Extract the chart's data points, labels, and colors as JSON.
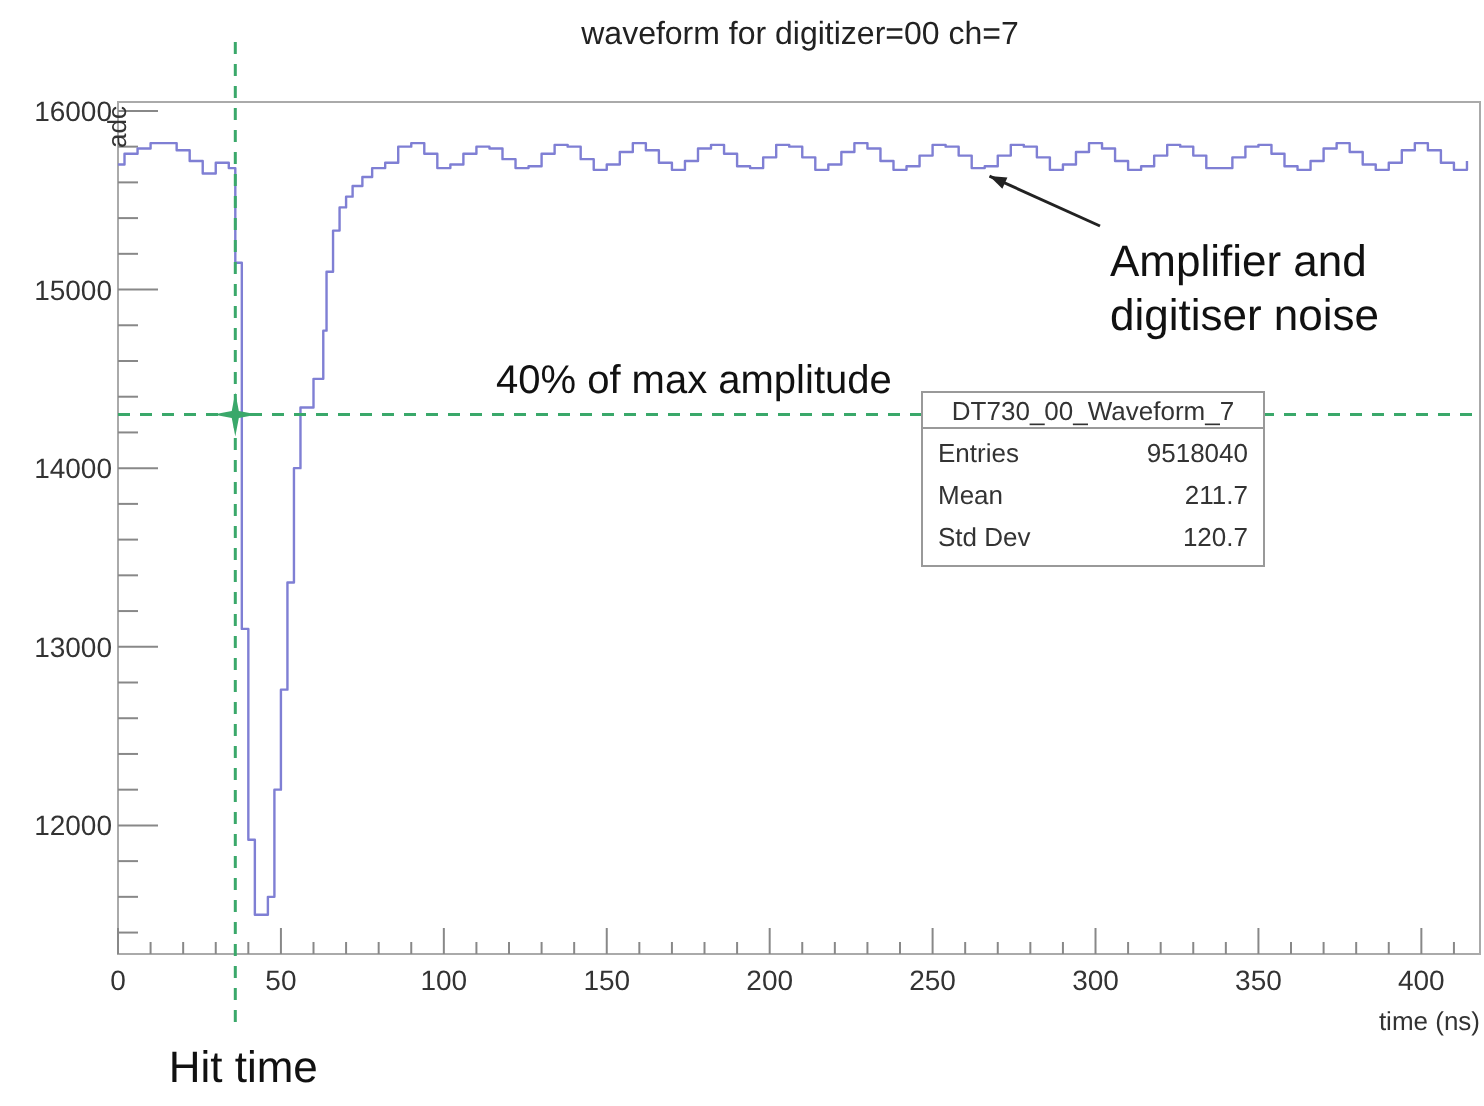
{
  "chart_data": {
    "type": "step",
    "title": "waveform for digitizer=00 ch=7",
    "xlabel": "time (ns)",
    "ylabel": "adc",
    "xlim": [
      0,
      418
    ],
    "ylim": [
      11280,
      16050
    ],
    "xticks": [
      0,
      {
        "value": 10,
        "label": null
      },
      {
        "value": 20,
        "label": null
      },
      {
        "value": 30,
        "label": null
      },
      {
        "value": 40,
        "label": null
      },
      50,
      {
        "value": 60,
        "label": null
      },
      {
        "value": 70,
        "label": null
      },
      {
        "value": 80,
        "label": null
      },
      {
        "value": 90,
        "label": null
      },
      100,
      {
        "value": 110,
        "label": null
      },
      {
        "value": 120,
        "label": null
      },
      {
        "value": 130,
        "label": null
      },
      {
        "value": 140,
        "label": null
      },
      150,
      {
        "value": 160,
        "label": null
      },
      {
        "value": 170,
        "label": null
      },
      {
        "value": 180,
        "label": null
      },
      {
        "value": 190,
        "label": null
      },
      200,
      {
        "value": 210,
        "label": null
      },
      {
        "value": 220,
        "label": null
      },
      {
        "value": 230,
        "label": null
      },
      {
        "value": 240,
        "label": null
      },
      250,
      {
        "value": 260,
        "label": null
      },
      {
        "value": 270,
        "label": null
      },
      {
        "value": 280,
        "label": null
      },
      {
        "value": 290,
        "label": null
      },
      300,
      {
        "value": 310,
        "label": null
      },
      {
        "value": 320,
        "label": null
      },
      {
        "value": 330,
        "label": null
      },
      {
        "value": 340,
        "label": null
      },
      350,
      {
        "value": 360,
        "label": null
      },
      {
        "value": 370,
        "label": null
      },
      {
        "value": 380,
        "label": null
      },
      {
        "value": 390,
        "label": null
      },
      400,
      {
        "value": 410,
        "label": null
      }
    ],
    "yticks": [
      {
        "value": 11400,
        "label": null
      },
      {
        "value": 11600,
        "label": null
      },
      {
        "value": 11800,
        "label": null
      },
      12000,
      {
        "value": 12200,
        "label": null
      },
      {
        "value": 12400,
        "label": null
      },
      {
        "value": 12600,
        "label": null
      },
      {
        "value": 12800,
        "label": null
      },
      13000,
      {
        "value": 13200,
        "label": null
      },
      {
        "value": 13400,
        "label": null
      },
      {
        "value": 13600,
        "label": null
      },
      {
        "value": 13800,
        "label": null
      },
      14000,
      {
        "value": 14200,
        "label": null
      },
      {
        "value": 14400,
        "label": null
      },
      {
        "value": 14600,
        "label": null
      },
      {
        "value": 14800,
        "label": null
      },
      15000,
      {
        "value": 15200,
        "label": null
      },
      {
        "value": 15400,
        "label": null
      },
      {
        "value": 15600,
        "label": null
      },
      {
        "value": 15800,
        "label": null
      },
      16000
    ],
    "grid": false,
    "series": [
      {
        "color": "#7f7fd4",
        "x": [
          0,
          2,
          6,
          10,
          14,
          18,
          22,
          26,
          30,
          34,
          36,
          38,
          40,
          42,
          44,
          46,
          48,
          50,
          52,
          54,
          56,
          60,
          63,
          64,
          66,
          68,
          70,
          72,
          75,
          78,
          82,
          86,
          90,
          94,
          98,
          102,
          106,
          110,
          114,
          118,
          122,
          126,
          130,
          134,
          138,
          142,
          146,
          150,
          154,
          158,
          162,
          166,
          170,
          174,
          178,
          182,
          186,
          190,
          194,
          198,
          202,
          206,
          210,
          214,
          218,
          222,
          226,
          230,
          234,
          238,
          242,
          246,
          250,
          254,
          258,
          262,
          266,
          270,
          274,
          278,
          282,
          286,
          290,
          294,
          298,
          302,
          306,
          310,
          314,
          318,
          322,
          326,
          330,
          334,
          338,
          342,
          346,
          350,
          354,
          358,
          362,
          366,
          370,
          374,
          378,
          382,
          386,
          390,
          394,
          398,
          402,
          406,
          410,
          414
        ],
        "values": [
          15700,
          15760,
          15790,
          15820,
          15820,
          15780,
          15720,
          15650,
          15710,
          15680,
          15150,
          13100,
          11920,
          11500,
          11500,
          11600,
          12200,
          12760,
          13360,
          14000,
          14340,
          14500,
          14770,
          15100,
          15330,
          15460,
          15520,
          15580,
          15630,
          15680,
          15710,
          15800,
          15820,
          15760,
          15680,
          15700,
          15760,
          15800,
          15790,
          15730,
          15680,
          15690,
          15760,
          15810,
          15800,
          15730,
          15670,
          15700,
          15770,
          15820,
          15780,
          15710,
          15670,
          15720,
          15790,
          15810,
          15760,
          15690,
          15680,
          15740,
          15810,
          15800,
          15740,
          15670,
          15700,
          15770,
          15820,
          15790,
          15720,
          15670,
          15690,
          15750,
          15810,
          15800,
          15750,
          15680,
          15690,
          15750,
          15810,
          15800,
          15740,
          15670,
          15700,
          15770,
          15820,
          15790,
          15720,
          15670,
          15690,
          15750,
          15810,
          15800,
          15750,
          15680,
          15680,
          15740,
          15800,
          15810,
          15760,
          15690,
          15670,
          15720,
          15790,
          15820,
          15770,
          15700,
          15670,
          15710,
          15780,
          15820,
          15780,
          15710,
          15670,
          15720
        ]
      },
      {
        "type": "scatter",
        "color": "#3aa86a",
        "marker": "star",
        "x": [
          36
        ],
        "values": [
          14300
        ]
      }
    ],
    "ref_lines": [
      {
        "axis": "y",
        "value": 14300,
        "label": "40% of max amplitude",
        "color": "#3aa86a",
        "line_style": "dashed"
      },
      {
        "axis": "x",
        "value": 36,
        "label": "Hit time",
        "color": "#3aa86a",
        "line_style": "dashed"
      }
    ],
    "annotations": [
      {
        "text": "Amplifier and digitiser noise",
        "x": 265,
        "y": 15680
      },
      "DT730_00_Waveform_7",
      "Entries 9518040",
      "Mean 211.7",
      "Std Dev 120.7"
    ]
  }
}
